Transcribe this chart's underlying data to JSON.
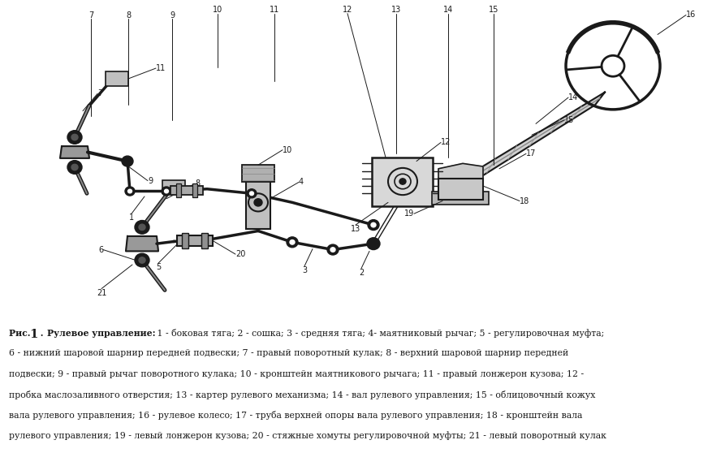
{
  "figure_width": 8.77,
  "figure_height": 5.58,
  "dpi": 100,
  "bg_color": "#ffffff",
  "caption_bold_part": "Рис. 1",
  "caption_fig_dot": " . ",
  "caption_title_bold": "Рулевое управление:",
  "caption_line1_normal": " 1 - боковая тяга; 2 - сошка; 3 - средняя тяга; 4- маятниковый рычаг; 5 - регулировочная муфта;",
  "caption_line2": "6 - нижний шаровой шарнир передней подвески; 7 - правый поворотный кулак; 8 - верхний шаровой шарнир передней",
  "caption_line3": "подвески; 9 - правый рычаг поворотного кулака; 10 - кронштейн маятникового рычага; 11 - правый лонжерон кузова; 12 -",
  "caption_line4": "пробка маслозаливного отверстия; 13 - картер рулевого механизма; 14 - вал рулевого управления; 15 - облицовочный кожух",
  "caption_line5": "вала рулевого управления; 16 - рулевое колесо; 17 - труба верхней опоры вала рулевого управления; 18 - кронштейн вала",
  "caption_line6": "рулевого управления; 19 - левый лонжерон кузова; 20 - стяжные хомуты регулировочной муфты; 21 - левый поворотный кулак",
  "caption_fontsize": 7.8,
  "text_color": "#000000",
  "dark": "#1a1a1a"
}
